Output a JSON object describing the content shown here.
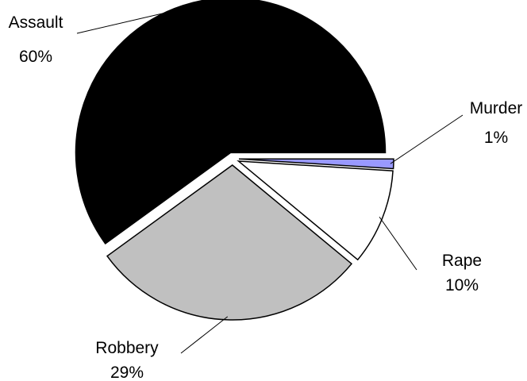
{
  "chart_data": {
    "type": "pie",
    "slices": [
      {
        "label": "Murder",
        "pct_label": "1%",
        "value": 1,
        "color": "#9999ff"
      },
      {
        "label": "Rape",
        "pct_label": "10%",
        "value": 10,
        "color": "#ffffff"
      },
      {
        "label": "Robbery",
        "pct_label": "29%",
        "value": 29,
        "color": "#c0c0c0"
      },
      {
        "label": "Assault",
        "pct_label": "60%",
        "value": 60,
        "color": "#000000"
      }
    ],
    "legend": "none",
    "exploded": true
  }
}
